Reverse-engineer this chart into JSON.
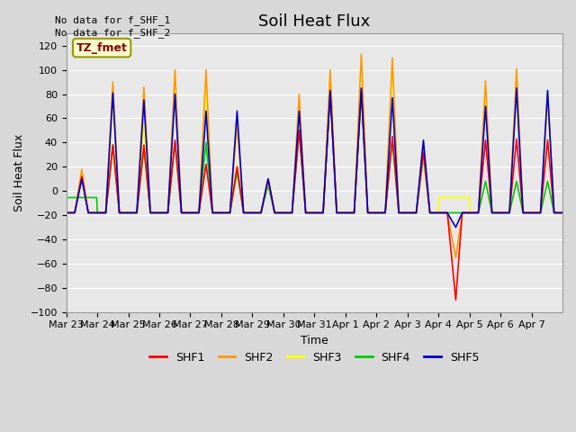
{
  "title": "Soil Heat Flux",
  "ylabel": "Soil Heat Flux",
  "xlabel": "Time",
  "text_no_data_1": "No data for f_SHF_1",
  "text_no_data_2": "No data for f_SHF_2",
  "legend_label": "TZ_fmet",
  "series_labels": [
    "SHF1",
    "SHF2",
    "SHF3",
    "SHF4",
    "SHF5"
  ],
  "series_colors": [
    "#ff0000",
    "#ff9900",
    "#ffff00",
    "#00cc00",
    "#0000cc"
  ],
  "ylim": [
    -100,
    130
  ],
  "yticks": [
    -100,
    -80,
    -60,
    -40,
    -20,
    0,
    20,
    40,
    60,
    80,
    100,
    120
  ],
  "bg_color": "#d8d8d8",
  "axes_bg": "#e8e8e8",
  "grid_color": "#ffffff",
  "title_fontsize": 13,
  "label_fontsize": 9,
  "tick_fontsize": 8,
  "days": [
    "Mar 23",
    "Mar 24",
    "Mar 25",
    "Mar 26",
    "Mar 27",
    "Mar 28",
    "Mar 29",
    "Mar 30",
    "Mar 31",
    "Apr 1",
    "Apr 2",
    "Apr 3",
    "Apr 4",
    "Apr 5",
    "Apr 6",
    "Apr 7"
  ],
  "night_val": -18,
  "pts_per_day": 48,
  "shf1_peaks": [
    12,
    38,
    38,
    42,
    22,
    20,
    10,
    50,
    82,
    83,
    45,
    32,
    -90,
    42,
    43,
    42
  ],
  "shf2_peaks": [
    18,
    90,
    86,
    100,
    100,
    57,
    10,
    80,
    100,
    113,
    110,
    35,
    -55,
    91,
    101,
    80
  ],
  "shf3_peaks": [
    14,
    75,
    55,
    85,
    85,
    53,
    8,
    65,
    95,
    110,
    107,
    30,
    0,
    87,
    97,
    74
  ],
  "shf4_peaks": [
    0,
    38,
    35,
    40,
    40,
    16,
    5,
    50,
    82,
    82,
    42,
    28,
    -18,
    8,
    8,
    8
  ],
  "shf5_peaks": [
    10,
    81,
    75,
    80,
    66,
    66,
    10,
    66,
    83,
    85,
    77,
    42,
    -30,
    70,
    85,
    83
  ]
}
